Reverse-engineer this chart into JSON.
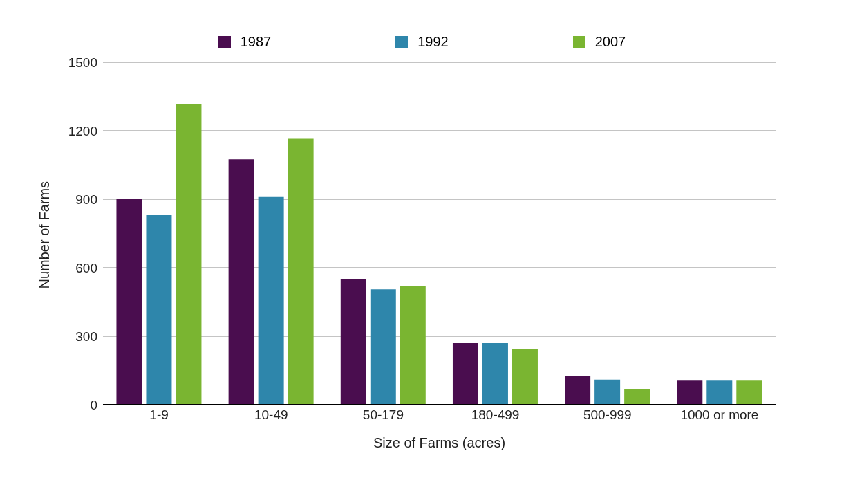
{
  "chart_data": {
    "type": "bar",
    "xlabel": "Size of Farms (acres)",
    "ylabel": "Number of Farms",
    "categories": [
      "1-9",
      "10-49",
      "50-179",
      "180-499",
      "500-999",
      "1000 or more"
    ],
    "series": [
      {
        "name": "1987",
        "color": "#4a0d4f",
        "values": [
          900,
          1075,
          550,
          270,
          125,
          105
        ]
      },
      {
        "name": "1992",
        "color": "#2e86ab",
        "values": [
          830,
          910,
          505,
          270,
          110,
          105
        ]
      },
      {
        "name": "2007",
        "color": "#7ab531",
        "values": [
          1315,
          1165,
          520,
          245,
          70,
          105
        ]
      }
    ],
    "ylim": [
      0,
      1500
    ],
    "yticks": [
      0,
      300,
      600,
      900,
      1200,
      1500
    ],
    "grid": "y",
    "legend": "top"
  }
}
